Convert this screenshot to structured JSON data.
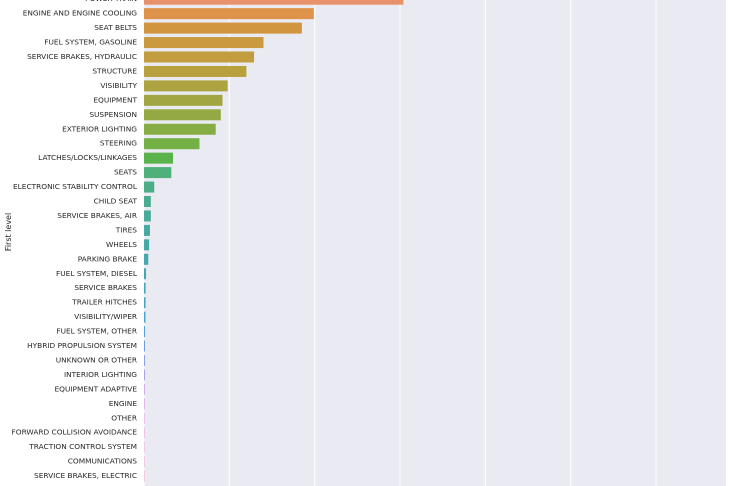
{
  "chart_data": {
    "type": "bar",
    "orientation": "horizontal",
    "ylabel": "First level",
    "xlabel": "",
    "grid": true,
    "categories": [
      "POWER TRAIN",
      "ENGINE AND ENGINE COOLING",
      "SEAT BELTS",
      "FUEL SYSTEM, GASOLINE",
      "SERVICE BRAKES, HYDRAULIC",
      "STRUCTURE",
      "VISIBILITY",
      "EQUIPMENT",
      "SUSPENSION",
      "EXTERIOR LIGHTING",
      "STEERING",
      "LATCHES/LOCKS/LINKAGES",
      "SEATS",
      "ELECTRONIC STABILITY CONTROL",
      "CHILD SEAT",
      "SERVICE BRAKES, AIR",
      "TIRES",
      "WHEELS",
      "PARKING BRAKE",
      "FUEL SYSTEM, DIESEL",
      "SERVICE BRAKES",
      "TRAILER HITCHES",
      "VISIBILITY/WIPER",
      "FUEL SYSTEM, OTHER",
      "HYBRID PROPULSION SYSTEM",
      "UNKNOWN OR OTHER",
      "INTERIOR LIGHTING",
      "EQUIPMENT ADAPTIVE",
      "ENGINE",
      "OTHER",
      "FORWARD COLLISION AVOIDANCE",
      "TRACTION CONTROL SYSTEM",
      "COMMUNICATIONS",
      "SERVICE BRAKES, ELECTRIC"
    ],
    "values": [
      304,
      199,
      185,
      140,
      129,
      120,
      98,
      92,
      90,
      84,
      65,
      34,
      32,
      12,
      8,
      8,
      7,
      6,
      5,
      2.4,
      1.9,
      1.8,
      1.7,
      1.2,
      1.1,
      1.0,
      0.9,
      0.6,
      0.5,
      0.4,
      0.4,
      0.3,
      0.3,
      0.2
    ],
    "xlim": [
      0,
      682
    ],
    "gridlines_x": [
      0,
      100,
      200,
      300,
      400,
      500,
      600
    ]
  }
}
